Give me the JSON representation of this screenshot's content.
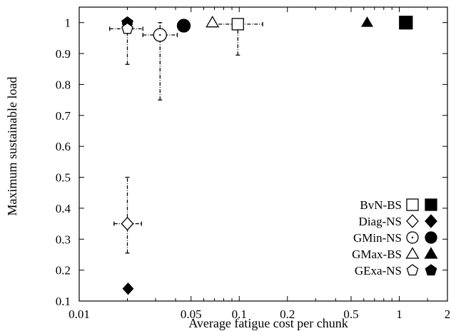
{
  "chart_data": {
    "type": "scatter",
    "xlabel": "Average fatigue cost per chunk",
    "ylabel": "Maximum sustainable load",
    "xscale": "log",
    "xlim": [
      0.01,
      2
    ],
    "ylim": [
      0.1,
      1.05
    ],
    "xticks": [
      {
        "value": 0.01,
        "label": "0.01"
      },
      {
        "value": 0.05,
        "label": "0.05"
      },
      {
        "value": 0.1,
        "label": "0.1"
      },
      {
        "value": 0.2,
        "label": "0.2"
      },
      {
        "value": 0.5,
        "label": "0.5"
      },
      {
        "value": 1,
        "label": "1"
      },
      {
        "value": 2,
        "label": "2"
      }
    ],
    "yticks": [
      {
        "value": 0.1,
        "label": "0.1"
      },
      {
        "value": 0.2,
        "label": "0.2"
      },
      {
        "value": 0.3,
        "label": "0.3"
      },
      {
        "value": 0.4,
        "label": "0.4"
      },
      {
        "value": 0.5,
        "label": "0.5"
      },
      {
        "value": 0.6,
        "label": "0.6"
      },
      {
        "value": 0.7,
        "label": "0.7"
      },
      {
        "value": 0.8,
        "label": "0.8"
      },
      {
        "value": 0.9,
        "label": "0.9"
      },
      {
        "value": 1,
        "label": "1"
      }
    ],
    "grid": false,
    "legend_position": "bottom-right",
    "series": [
      {
        "name": "BvN-BS",
        "marker": "square",
        "hollow": {
          "x": 0.098,
          "y": 0.995,
          "xerr": [
            0.067,
            0.14
          ],
          "yerr": [
            0.895,
            1.0
          ]
        },
        "filled": {
          "x": 1.1,
          "y": 1.0
        }
      },
      {
        "name": "Diag-NS",
        "marker": "diamond",
        "hollow": {
          "x": 0.02,
          "y": 0.35,
          "xerr": [
            0.0165,
            0.0245
          ],
          "yerr": [
            0.255,
            0.5
          ]
        },
        "filled": [
          {
            "x": 0.02,
            "y": 0.995
          },
          {
            "x": 0.0202,
            "y": 0.14
          }
        ]
      },
      {
        "name": "GMin-NS",
        "marker": "circle",
        "hollow": {
          "x": 0.032,
          "y": 0.96,
          "xerr": [
            0.025,
            0.041
          ],
          "yerr": [
            0.75,
            1.0
          ]
        },
        "filled": {
          "x": 0.045,
          "y": 0.99
        }
      },
      {
        "name": "GMax-BS",
        "marker": "triangle",
        "hollow": {
          "x": 0.068,
          "y": 1.0
        },
        "filled": {
          "x": 0.63,
          "y": 1.0
        }
      },
      {
        "name": "GExa-NS",
        "marker": "pentagon",
        "hollow": {
          "x": 0.02,
          "y": 0.98,
          "xerr": [
            0.0155,
            0.025
          ],
          "yerr": [
            0.865,
            1.0
          ]
        },
        "filled": {
          "x": 0.02,
          "y": 1.0
        }
      }
    ]
  }
}
